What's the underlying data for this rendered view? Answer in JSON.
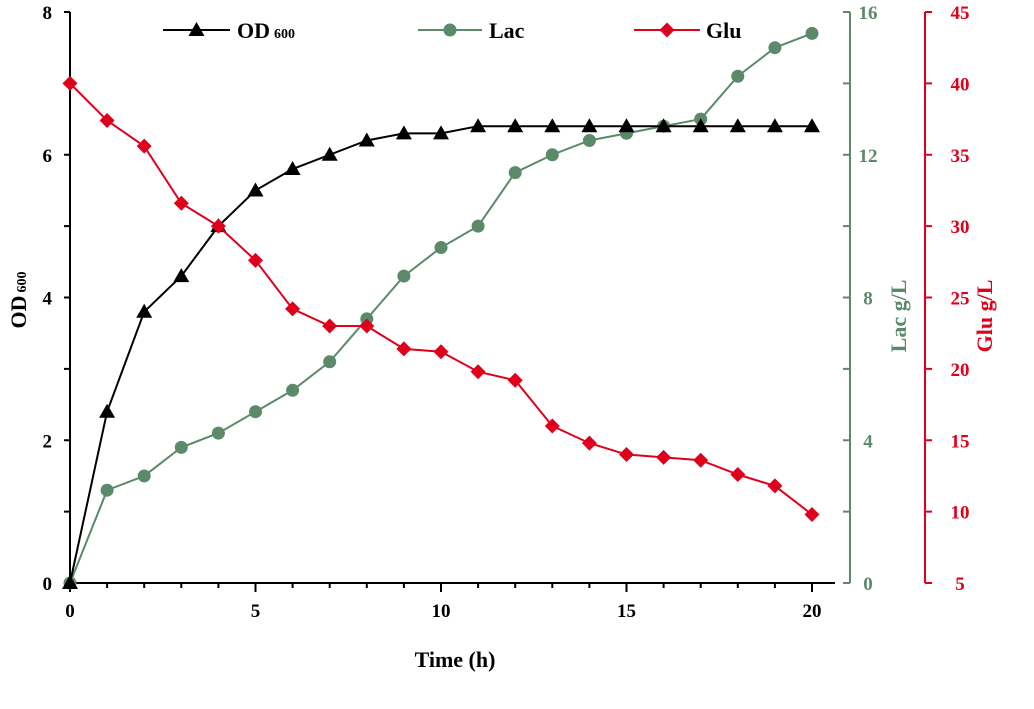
{
  "chart_data": {
    "type": "line",
    "title": "",
    "xlabel": "Time (h)",
    "xlim": [
      0,
      20
    ],
    "x_ticks": [
      "0",
      "5",
      "10",
      "15",
      "20"
    ],
    "x": [
      0,
      1,
      2,
      3,
      4,
      5,
      6,
      7,
      8,
      9,
      10,
      11,
      12,
      13,
      14,
      15,
      16,
      17,
      18,
      19,
      20
    ],
    "axes": {
      "left": {
        "label": "OD",
        "label_sub": "600",
        "ylim": [
          0,
          8
        ],
        "ticks": [
          "0",
          "2",
          "4",
          "6",
          "8"
        ],
        "color": "#000000"
      },
      "right1": {
        "label": "Lac g/L",
        "ylim": [
          0,
          16
        ],
        "ticks": [
          "0",
          "4",
          "8",
          "12",
          "16"
        ],
        "color": "#5b8a6a"
      },
      "right2": {
        "label": "Glu g/L",
        "ylim": [
          5,
          45
        ],
        "ticks": [
          "5",
          "10",
          "15",
          "20",
          "25",
          "30",
          "35",
          "40",
          "45"
        ],
        "color": "#e0001b"
      }
    },
    "series": [
      {
        "name": "OD",
        "name_sub": "600",
        "axis": "left",
        "color": "#000000",
        "marker": "triangle",
        "values": [
          0,
          2.4,
          3.8,
          4.3,
          5.0,
          5.5,
          5.8,
          6.0,
          6.2,
          6.3,
          6.3,
          6.4,
          6.4,
          6.4,
          6.4,
          6.4,
          6.4,
          6.4,
          6.4,
          6.4,
          6.4
        ]
      },
      {
        "name": "Lac",
        "axis": "right1",
        "color": "#5b8a6a",
        "marker": "circle",
        "values": [
          0,
          2.6,
          3.0,
          3.8,
          4.2,
          4.8,
          5.4,
          6.2,
          7.4,
          8.6,
          9.4,
          10.0,
          11.5,
          12.0,
          12.4,
          12.6,
          12.8,
          13.0,
          14.2,
          15.0,
          15.4
        ]
      },
      {
        "name": "Glu",
        "axis": "right2",
        "color": "#e0001b",
        "marker": "diamond",
        "values": [
          40,
          37.4,
          35.6,
          31.6,
          30.0,
          27.6,
          24.2,
          23.0,
          23.0,
          21.4,
          21.2,
          19.8,
          19.2,
          16.0,
          14.8,
          14.0,
          13.8,
          13.6,
          12.6,
          11.8,
          9.8
        ]
      }
    ],
    "legend": {
      "position": "top"
    }
  }
}
